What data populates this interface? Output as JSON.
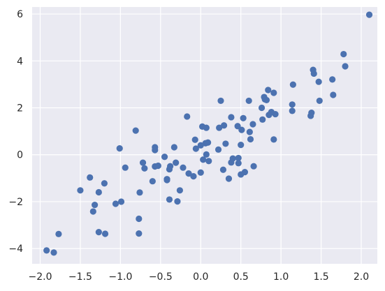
{
  "chart_data": {
    "type": "scatter",
    "title": "",
    "xlabel": "",
    "ylabel": "",
    "xlim": [
      -2.1,
      2.2
    ],
    "ylim": [
      -4.65,
      6.3
    ],
    "x_ticks": [
      -2.0,
      -1.5,
      -1.0,
      -0.5,
      0.0,
      0.5,
      1.0,
      1.5,
      2.0
    ],
    "x_tick_labels": [
      "−2.0",
      "−1.5",
      "−1.0",
      "−0.5",
      "0.0",
      "0.5",
      "1.0",
      "1.5",
      "2.0"
    ],
    "y_ticks": [
      -4,
      -2,
      0,
      2,
      4,
      6
    ],
    "y_tick_labels": [
      "−4",
      "−2",
      "0",
      "2",
      "4",
      "6"
    ],
    "grid": true,
    "background_color": "#eaeaf2",
    "grid_color": "#ffffff",
    "marker_color": "#4c72b0",
    "points": [
      [
        -1.92,
        -4.08
      ],
      [
        -1.83,
        -4.17
      ],
      [
        -1.77,
        -3.38
      ],
      [
        -1.5,
        -1.52
      ],
      [
        -1.38,
        -0.97
      ],
      [
        -1.34,
        -2.42
      ],
      [
        -1.32,
        -2.14
      ],
      [
        -1.27,
        -3.3
      ],
      [
        -1.27,
        -1.6
      ],
      [
        -1.2,
        -1.22
      ],
      [
        -1.19,
        -3.37
      ],
      [
        -1.06,
        -2.09
      ],
      [
        -1.01,
        0.27
      ],
      [
        -0.99,
        -2.0
      ],
      [
        -0.94,
        -0.55
      ],
      [
        -0.81,
        1.03
      ],
      [
        -0.77,
        -3.36
      ],
      [
        -0.77,
        -2.73
      ],
      [
        -0.76,
        -1.61
      ],
      [
        -0.72,
        -0.34
      ],
      [
        -0.7,
        -0.58
      ],
      [
        -0.6,
        -1.13
      ],
      [
        -0.57,
        0.2
      ],
      [
        -0.57,
        0.32
      ],
      [
        -0.57,
        -0.5
      ],
      [
        -0.53,
        -0.47
      ],
      [
        -0.45,
        -0.09
      ],
      [
        -0.42,
        -1.04
      ],
      [
        -0.42,
        -1.08
      ],
      [
        -0.39,
        -1.91
      ],
      [
        -0.39,
        -0.62
      ],
      [
        -0.38,
        -0.49
      ],
      [
        -0.33,
        0.32
      ],
      [
        -0.31,
        -0.34
      ],
      [
        -0.29,
        -1.99
      ],
      [
        -0.26,
        -1.52
      ],
      [
        -0.22,
        -0.55
      ],
      [
        -0.17,
        1.63
      ],
      [
        -0.15,
        -0.8
      ],
      [
        -0.09,
        -0.92
      ],
      [
        -0.07,
        0.64
      ],
      [
        -0.06,
        0.26
      ],
      [
        0.0,
        0.4
      ],
      [
        0.0,
        -0.76
      ],
      [
        0.02,
        1.2
      ],
      [
        0.03,
        -0.21
      ],
      [
        0.06,
        0.49
      ],
      [
        0.07,
        1.15
      ],
      [
        0.07,
        0.01
      ],
      [
        0.09,
        0.52
      ],
      [
        0.1,
        -0.27
      ],
      [
        0.22,
        0.22
      ],
      [
        0.23,
        1.15
      ],
      [
        0.25,
        2.3
      ],
      [
        0.28,
        -0.64
      ],
      [
        0.29,
        1.25
      ],
      [
        0.31,
        0.47
      ],
      [
        0.35,
        -1.02
      ],
      [
        0.38,
        1.6
      ],
      [
        0.38,
        -0.33
      ],
      [
        0.4,
        -0.16
      ],
      [
        0.46,
        1.22
      ],
      [
        0.47,
        -0.36
      ],
      [
        0.47,
        -0.14
      ],
      [
        0.5,
        -0.84
      ],
      [
        0.5,
        0.42
      ],
      [
        0.51,
        1.06
      ],
      [
        0.53,
        1.56
      ],
      [
        0.55,
        -0.74
      ],
      [
        0.6,
        2.3
      ],
      [
        0.61,
        0.97
      ],
      [
        0.62,
        0.66
      ],
      [
        0.65,
        1.3
      ],
      [
        0.66,
        -0.49
      ],
      [
        0.76,
        2.0
      ],
      [
        0.77,
        1.5
      ],
      [
        0.79,
        2.46
      ],
      [
        0.8,
        2.36
      ],
      [
        0.82,
        2.33
      ],
      [
        0.84,
        2.76
      ],
      [
        0.85,
        1.7
      ],
      [
        0.88,
        1.82
      ],
      [
        0.91,
        2.64
      ],
      [
        0.91,
        0.65
      ],
      [
        0.93,
        1.73
      ],
      [
        1.14,
        2.14
      ],
      [
        1.14,
        1.87
      ],
      [
        1.15,
        2.99
      ],
      [
        1.37,
        1.66
      ],
      [
        1.38,
        1.79
      ],
      [
        1.4,
        3.62
      ],
      [
        1.41,
        3.46
      ],
      [
        1.47,
        3.11
      ],
      [
        1.48,
        2.3
      ],
      [
        1.64,
        3.21
      ],
      [
        1.65,
        2.55
      ],
      [
        1.78,
        4.29
      ],
      [
        1.8,
        3.77
      ],
      [
        2.1,
        5.97
      ]
    ]
  }
}
